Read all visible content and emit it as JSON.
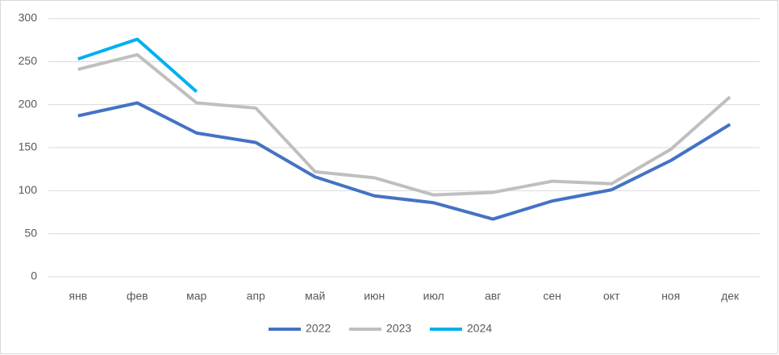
{
  "chart_data": {
    "type": "line",
    "categories": [
      "янв",
      "фев",
      "мар",
      "апр",
      "май",
      "июн",
      "июл",
      "авг",
      "сен",
      "окт",
      "ноя",
      "дек"
    ],
    "series": [
      {
        "name": "2022",
        "color": "#4472c4",
        "values": [
          187,
          202,
          167,
          156,
          116,
          94,
          86,
          67,
          88,
          101,
          135,
          177
        ]
      },
      {
        "name": "2023",
        "color": "#bfbfbf",
        "values": [
          241,
          258,
          202,
          196,
          122,
          115,
          95,
          98,
          111,
          108,
          148,
          209
        ]
      },
      {
        "name": "2024",
        "color": "#00b0f0",
        "values": [
          253,
          276,
          215,
          null,
          null,
          null,
          null,
          null,
          null,
          null,
          null,
          null
        ]
      }
    ],
    "ylim": [
      0,
      300
    ],
    "yticks": [
      0,
      50,
      100,
      150,
      200,
      250,
      300
    ],
    "grid": true,
    "legend": "bottom"
  }
}
